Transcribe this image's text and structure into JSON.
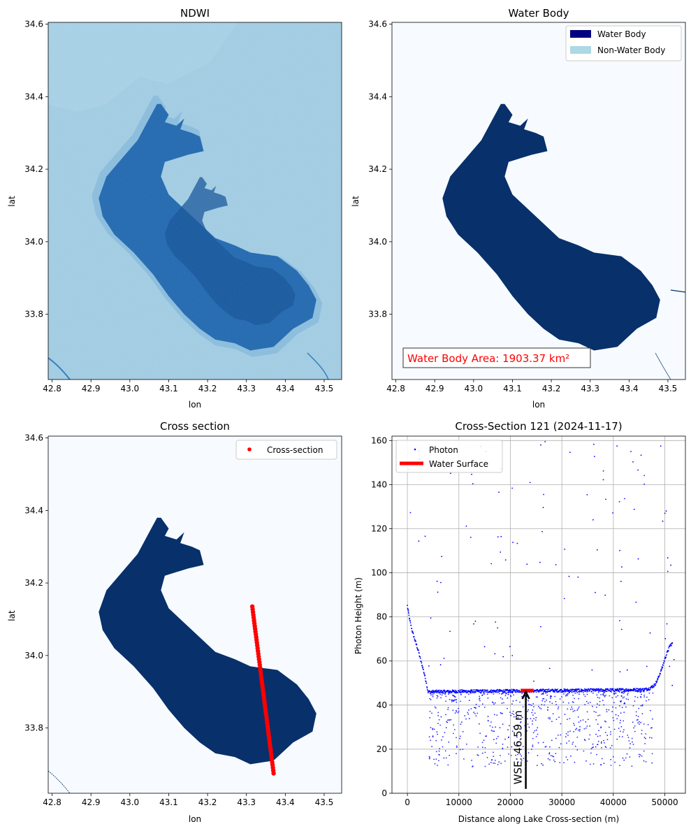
{
  "figure": {
    "panels": [
      {
        "id": "ndwi",
        "title": "NDWI",
        "xlabel": "lon",
        "ylabel": "lat",
        "xticks": [
          "42.8",
          "42.9",
          "43.0",
          "43.1",
          "43.2",
          "43.3",
          "43.4",
          "43.5"
        ],
        "yticks": [
          "33.8",
          "34.0",
          "34.2",
          "34.4",
          "34.6"
        ]
      },
      {
        "id": "water",
        "title": "Water Body",
        "xlabel": "lon",
        "ylabel": "lat",
        "xticks": [
          "42.8",
          "42.9",
          "43.0",
          "43.1",
          "43.2",
          "43.3",
          "43.4",
          "43.5"
        ],
        "yticks": [
          "33.8",
          "34.0",
          "34.2",
          "34.4",
          "34.6"
        ],
        "legend": [
          "Water Body",
          "Non-Water Body"
        ],
        "annotation": "Water Body Area: 1903.37 km²"
      },
      {
        "id": "cross",
        "title": "Cross section",
        "xlabel": "lon",
        "ylabel": "lat",
        "xticks": [
          "42.8",
          "42.9",
          "43.0",
          "43.1",
          "43.2",
          "43.3",
          "43.4",
          "43.5"
        ],
        "yticks": [
          "33.8",
          "34.0",
          "34.2",
          "34.4",
          "34.6"
        ],
        "legend": [
          "Cross-section"
        ]
      },
      {
        "id": "profile",
        "title": "Cross-Section 121 (2024-11-17)",
        "xlabel": "Distance along Lake Cross-section (m)",
        "ylabel": "Photon Height (m)",
        "xticks": [
          "0",
          "10000",
          "20000",
          "30000",
          "40000",
          "50000"
        ],
        "yticks": [
          "0",
          "20",
          "40",
          "60",
          "80",
          "100",
          "120",
          "140",
          "160"
        ],
        "legend": [
          "Photon",
          "Water Surface"
        ],
        "annotation": "WSE: 46.59 m"
      }
    ]
  },
  "colors": {
    "water": "#08306b",
    "water_mid": "#1c64ad",
    "land_ndwi": "#9ecae1",
    "land_ndwi_light": "#b9d9ea",
    "non_water": "#f7fbff",
    "legend_water": "#000080",
    "legend_nonwater": "#add8e6",
    "cross_section": "#ff0000",
    "photon": "#0000ff",
    "annotation_red": "#ff0000"
  },
  "chart_data": [
    {
      "type": "heatmap",
      "title": "NDWI",
      "xlabel": "lon",
      "ylabel": "lat",
      "xlim": [
        42.79,
        43.545
      ],
      "ylim": [
        33.62,
        34.605
      ],
      "lake_outline_lonlat": [
        [
          43.08,
          34.38
        ],
        [
          43.1,
          34.35
        ],
        [
          43.09,
          34.33
        ],
        [
          43.12,
          34.32
        ],
        [
          43.14,
          34.34
        ],
        [
          43.13,
          34.31
        ],
        [
          43.16,
          34.3
        ],
        [
          43.18,
          34.29
        ],
        [
          43.19,
          34.25
        ],
        [
          43.15,
          34.24
        ],
        [
          43.12,
          34.23
        ],
        [
          43.09,
          34.22
        ],
        [
          43.08,
          34.18
        ],
        [
          43.1,
          34.13
        ],
        [
          43.15,
          34.08
        ],
        [
          43.22,
          34.01
        ],
        [
          43.27,
          33.99
        ],
        [
          43.31,
          33.97
        ],
        [
          43.38,
          33.96
        ],
        [
          43.43,
          33.92
        ],
        [
          43.46,
          33.88
        ],
        [
          43.48,
          33.84
        ],
        [
          43.47,
          33.79
        ],
        [
          43.42,
          33.76
        ],
        [
          43.37,
          33.71
        ],
        [
          43.31,
          33.7
        ],
        [
          43.27,
          33.72
        ],
        [
          43.22,
          33.73
        ],
        [
          43.18,
          33.76
        ],
        [
          43.14,
          33.8
        ],
        [
          43.1,
          33.85
        ],
        [
          43.06,
          33.91
        ],
        [
          43.01,
          33.97
        ],
        [
          42.96,
          34.02
        ],
        [
          42.93,
          34.07
        ],
        [
          42.92,
          34.12
        ],
        [
          42.94,
          34.18
        ],
        [
          42.98,
          34.23
        ],
        [
          43.02,
          34.28
        ],
        [
          43.05,
          34.34
        ],
        [
          43.07,
          34.38
        ]
      ]
    },
    {
      "type": "heatmap",
      "title": "Water Body",
      "xlabel": "lon",
      "ylabel": "lat",
      "series": [
        {
          "name": "Water Body"
        },
        {
          "name": "Non-Water Body"
        }
      ],
      "annotation": "Water Body Area: 1903.37 km²"
    },
    {
      "type": "scatter",
      "title": "Cross section",
      "xlabel": "lon",
      "ylabel": "lat",
      "series": [
        {
          "name": "Cross-section",
          "x": [
            43.315,
            43.37
          ],
          "y": [
            34.135,
            33.675
          ]
        }
      ]
    },
    {
      "type": "scatter",
      "title": "Cross-Section 121 (2024-11-17)",
      "xlabel": "Distance along Lake Cross-section (m)",
      "ylabel": "Photon Height (m)",
      "xlim": [
        -3000,
        54000
      ],
      "ylim": [
        0,
        162
      ],
      "grid": true,
      "legend_position": "upper-left",
      "series": [
        {
          "name": "Photon",
          "x": [
            0,
            200,
            400,
            700,
            1000,
            1400,
            1800,
            2200,
            2600,
            3000,
            3400,
            3700,
            4000,
            4300,
            4600,
            5000,
            5500,
            7000,
            10000,
            15000,
            20000,
            25000,
            30000,
            35000,
            40000,
            44000,
            46000,
            47000,
            48000,
            48500,
            49000,
            49500,
            50000,
            50500,
            51000,
            51500
          ],
          "y": [
            85,
            82,
            79,
            76,
            73,
            70,
            67,
            64,
            60,
            57,
            53,
            50,
            46,
            46,
            46,
            46,
            46.1,
            46.1,
            46.2,
            46.3,
            46.4,
            46.5,
            46.6,
            46.7,
            46.8,
            46.9,
            47,
            47.5,
            49,
            51,
            54,
            57,
            61,
            64,
            67,
            68
          ]
        },
        {
          "name": "Water Surface",
          "x": [
            22000,
            24500
          ],
          "y": [
            46.59,
            46.59
          ]
        }
      ],
      "annotation": "WSE: 46.59 m"
    }
  ]
}
